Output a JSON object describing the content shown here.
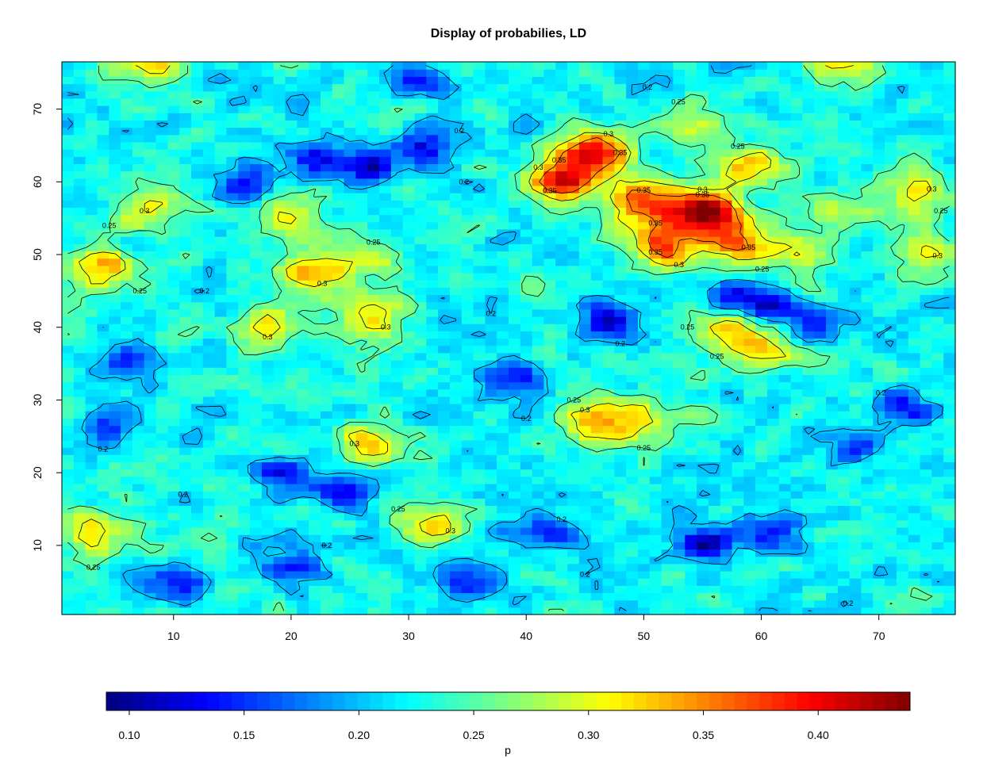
{
  "chart_data": {
    "type": "heatmap",
    "title": "Display of probabilies, LD",
    "xlabel": "",
    "ylabel": "",
    "colorbar_label": "p",
    "x_ticks": [
      10,
      20,
      30,
      40,
      50,
      60,
      70
    ],
    "y_ticks": [
      10,
      20,
      30,
      40,
      50,
      60,
      70
    ],
    "xlim": [
      0.5,
      76.5
    ],
    "ylim": [
      0.5,
      76.5
    ],
    "grid_size": [
      76,
      76
    ],
    "value_range": [
      0.09,
      0.44
    ],
    "colorbar_ticks": [
      "0.10",
      "0.15",
      "0.20",
      "0.25",
      "0.30",
      "0.35",
      "0.40"
    ],
    "colorbar_position": "bottom",
    "contour_levels": [
      0.2,
      0.25,
      0.3,
      0.35
    ],
    "colormap": [
      "#00007f",
      "#0000ff",
      "#007fff",
      "#00ffff",
      "#7fff7f",
      "#ffff00",
      "#ff7f00",
      "#ff0000",
      "#7f0000"
    ],
    "contour_color": "#000000",
    "hotspots": [
      {
        "x": 55,
        "y": 56,
        "p": 0.44
      },
      {
        "x": 46,
        "y": 64,
        "p": 0.4
      },
      {
        "x": 43,
        "y": 60,
        "p": 0.4
      },
      {
        "x": 50,
        "y": 57,
        "p": 0.38
      },
      {
        "x": 52,
        "y": 51,
        "p": 0.37
      },
      {
        "x": 58,
        "y": 52,
        "p": 0.34
      },
      {
        "x": 4,
        "y": 48,
        "p": 0.34
      },
      {
        "x": 22,
        "y": 47,
        "p": 0.33
      },
      {
        "x": 59,
        "y": 62,
        "p": 0.32
      },
      {
        "x": 60,
        "y": 37,
        "p": 0.32
      },
      {
        "x": 57,
        "y": 40,
        "p": 0.31
      },
      {
        "x": 46,
        "y": 27,
        "p": 0.33
      },
      {
        "x": 27,
        "y": 24,
        "p": 0.34
      },
      {
        "x": 3,
        "y": 12,
        "p": 0.32
      },
      {
        "x": 32,
        "y": 13,
        "p": 0.32
      },
      {
        "x": 74,
        "y": 51,
        "p": 0.32
      },
      {
        "x": 8,
        "y": 56,
        "p": 0.31
      },
      {
        "x": 8,
        "y": 76,
        "p": 0.31
      },
      {
        "x": 27,
        "y": 41,
        "p": 0.31
      },
      {
        "x": 18,
        "y": 40,
        "p": 0.31
      },
      {
        "x": 54,
        "y": 68,
        "p": 0.3
      },
      {
        "x": 66,
        "y": 56,
        "p": 0.3
      },
      {
        "x": 73,
        "y": 59,
        "p": 0.31
      },
      {
        "x": 63,
        "y": 50,
        "p": 0.3
      },
      {
        "x": 67,
        "y": 76,
        "p": 0.3
      },
      {
        "x": 50,
        "y": 27,
        "p": 0.3
      },
      {
        "x": 20,
        "y": 56,
        "p": 0.3
      },
      {
        "x": 26,
        "y": 50,
        "p": 0.31
      }
    ],
    "coldspots": [
      {
        "x": 55,
        "y": 10,
        "p": 0.1
      },
      {
        "x": 27,
        "y": 62,
        "p": 0.12
      },
      {
        "x": 31,
        "y": 65,
        "p": 0.13
      },
      {
        "x": 58,
        "y": 44,
        "p": 0.13
      },
      {
        "x": 61,
        "y": 43,
        "p": 0.13
      },
      {
        "x": 47,
        "y": 41,
        "p": 0.13
      },
      {
        "x": 72,
        "y": 29,
        "p": 0.13
      },
      {
        "x": 6,
        "y": 35,
        "p": 0.13
      },
      {
        "x": 24,
        "y": 18,
        "p": 0.13
      },
      {
        "x": 20,
        "y": 7,
        "p": 0.13
      },
      {
        "x": 16,
        "y": 60,
        "p": 0.13
      },
      {
        "x": 22,
        "y": 63,
        "p": 0.14
      },
      {
        "x": 19,
        "y": 20,
        "p": 0.14
      },
      {
        "x": 31,
        "y": 74,
        "p": 0.14
      },
      {
        "x": 39,
        "y": 33,
        "p": 0.14
      },
      {
        "x": 35,
        "y": 5,
        "p": 0.15
      },
      {
        "x": 5,
        "y": 27,
        "p": 0.15
      },
      {
        "x": 61,
        "y": 12,
        "p": 0.14
      },
      {
        "x": 64,
        "y": 40,
        "p": 0.15
      },
      {
        "x": 68,
        "y": 24,
        "p": 0.15
      },
      {
        "x": 42,
        "y": 12,
        "p": 0.15
      },
      {
        "x": 10,
        "y": 5,
        "p": 0.15
      }
    ]
  }
}
